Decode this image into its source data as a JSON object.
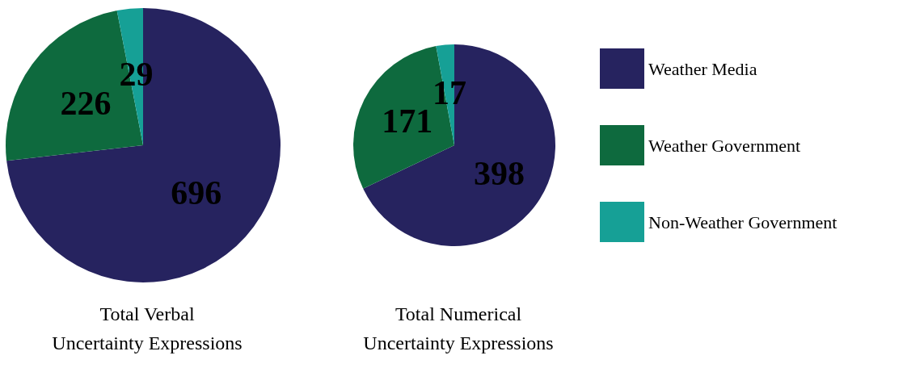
{
  "chart_data": [
    {
      "type": "pie",
      "title": "Total Verbal\nUncertainty Expressions",
      "categories": [
        null,
        null,
        null
      ],
      "values": [
        696,
        226,
        29
      ],
      "colors": [
        "#26235f",
        "#0e6a3e",
        "#16a096"
      ],
      "data_labels": true,
      "legend": false
    },
    {
      "type": "pie",
      "title": "Total Numerical\nUncertainty Expressions",
      "categories": [
        "Weather Media",
        "Weather Government",
        "Non-Weather Government"
      ],
      "values": [
        398,
        171,
        17
      ],
      "colors": [
        "#26235f",
        "#0e6a3e",
        "#16a096"
      ],
      "data_labels": true,
      "legend": "right"
    }
  ]
}
